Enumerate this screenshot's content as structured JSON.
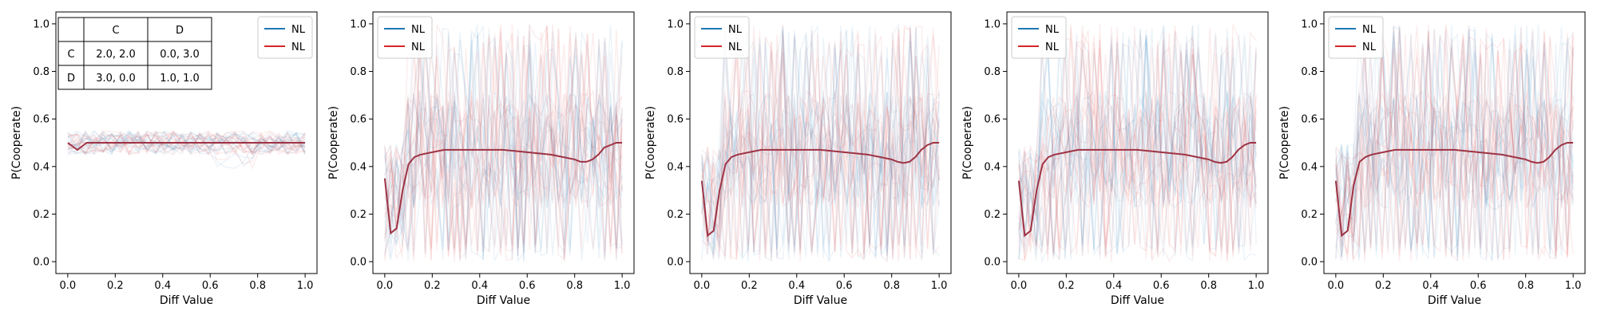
{
  "chart_data": [
    {
      "type": "line",
      "xlabel": "Diff Value",
      "ylabel": "P(Cooperate)",
      "xlim": [
        -0.05,
        1.05
      ],
      "ylim": [
        -0.05,
        1.05
      ],
      "xticks": [
        "0.0",
        "0.2",
        "0.4",
        "0.6",
        "0.8",
        "1.0"
      ],
      "yticks": [
        "0.0",
        "0.2",
        "0.4",
        "0.6",
        "0.8",
        "1.0"
      ],
      "legend_position": "top-right",
      "legend": [
        {
          "label": "NL",
          "color": "#1f77b4"
        },
        {
          "label": "NL",
          "color": "#d62728"
        }
      ],
      "payoff_table": {
        "col_headers": [
          "",
          "C",
          "D"
        ],
        "rows": [
          [
            "C",
            "2.0, 2.0",
            "0.0, 3.0"
          ],
          [
            "D",
            "3.0, 0.0",
            "1.0, 1.0"
          ]
        ]
      },
      "x": [
        0,
        0.04,
        0.08,
        0.12,
        0.16,
        0.2,
        0.3,
        0.4,
        0.5,
        0.6,
        0.7,
        0.8,
        0.9,
        1.0
      ],
      "mean_line": [
        0.5,
        0.47,
        0.5,
        0.5,
        0.5,
        0.5,
        0.5,
        0.5,
        0.5,
        0.5,
        0.5,
        0.5,
        0.5,
        0.5
      ],
      "noise_spread": 0.05,
      "noise_style": "band"
    },
    {
      "type": "line",
      "xlabel": "Diff Value",
      "ylabel": "P(Cooperate)",
      "xlim": [
        -0.05,
        1.05
      ],
      "ylim": [
        -0.05,
        1.05
      ],
      "xticks": [
        "0.0",
        "0.2",
        "0.4",
        "0.6",
        "0.8",
        "1.0"
      ],
      "yticks": [
        "0.0",
        "0.2",
        "0.4",
        "0.6",
        "0.8",
        "1.0"
      ],
      "legend_position": "top-left",
      "legend": [
        {
          "label": "NL",
          "color": "#1f77b4"
        },
        {
          "label": "NL",
          "color": "#d62728"
        }
      ],
      "x": [
        0,
        0.025,
        0.05,
        0.075,
        0.1,
        0.125,
        0.15,
        0.2,
        0.25,
        0.3,
        0.35,
        0.4,
        0.45,
        0.5,
        0.55,
        0.6,
        0.65,
        0.7,
        0.75,
        0.8,
        0.825,
        0.85,
        0.875,
        0.9,
        0.925,
        0.95,
        0.975,
        1.0
      ],
      "mean_line": [
        0.35,
        0.12,
        0.14,
        0.3,
        0.41,
        0.44,
        0.45,
        0.46,
        0.47,
        0.47,
        0.47,
        0.47,
        0.47,
        0.47,
        0.465,
        0.46,
        0.455,
        0.45,
        0.44,
        0.43,
        0.42,
        0.42,
        0.43,
        0.45,
        0.48,
        0.49,
        0.5,
        0.5
      ],
      "noise_spread": 0.45,
      "noise_style": "spiky"
    },
    {
      "type": "line",
      "xlabel": "Diff Value",
      "ylabel": "P(Cooperate)",
      "xlim": [
        -0.05,
        1.05
      ],
      "ylim": [
        -0.05,
        1.05
      ],
      "xticks": [
        "0.0",
        "0.2",
        "0.4",
        "0.6",
        "0.8",
        "1.0"
      ],
      "yticks": [
        "0.0",
        "0.2",
        "0.4",
        "0.6",
        "0.8",
        "1.0"
      ],
      "legend_position": "top-left",
      "legend": [
        {
          "label": "NL",
          "color": "#1f77b4"
        },
        {
          "label": "NL",
          "color": "#d62728"
        }
      ],
      "x": [
        0,
        0.025,
        0.05,
        0.075,
        0.1,
        0.125,
        0.15,
        0.2,
        0.25,
        0.3,
        0.35,
        0.4,
        0.45,
        0.5,
        0.55,
        0.6,
        0.65,
        0.7,
        0.75,
        0.8,
        0.825,
        0.85,
        0.875,
        0.9,
        0.925,
        0.95,
        0.975,
        1.0
      ],
      "mean_line": [
        0.34,
        0.11,
        0.13,
        0.3,
        0.41,
        0.44,
        0.45,
        0.46,
        0.47,
        0.47,
        0.47,
        0.47,
        0.47,
        0.47,
        0.465,
        0.46,
        0.455,
        0.45,
        0.44,
        0.43,
        0.42,
        0.415,
        0.42,
        0.44,
        0.47,
        0.49,
        0.5,
        0.5
      ],
      "noise_spread": 0.45,
      "noise_style": "spiky"
    },
    {
      "type": "line",
      "xlabel": "Diff Value",
      "ylabel": "P(Cooperate)",
      "xlim": [
        -0.05,
        1.05
      ],
      "ylim": [
        -0.05,
        1.05
      ],
      "xticks": [
        "0.0",
        "0.2",
        "0.4",
        "0.6",
        "0.8",
        "1.0"
      ],
      "yticks": [
        "0.0",
        "0.2",
        "0.4",
        "0.6",
        "0.8",
        "1.0"
      ],
      "legend_position": "top-left",
      "legend": [
        {
          "label": "NL",
          "color": "#1f77b4"
        },
        {
          "label": "NL",
          "color": "#d62728"
        }
      ],
      "x": [
        0,
        0.025,
        0.05,
        0.075,
        0.1,
        0.125,
        0.15,
        0.2,
        0.25,
        0.3,
        0.35,
        0.4,
        0.45,
        0.5,
        0.55,
        0.6,
        0.65,
        0.7,
        0.75,
        0.8,
        0.825,
        0.85,
        0.875,
        0.9,
        0.925,
        0.95,
        0.975,
        1.0
      ],
      "mean_line": [
        0.34,
        0.11,
        0.13,
        0.3,
        0.41,
        0.44,
        0.45,
        0.46,
        0.47,
        0.47,
        0.47,
        0.47,
        0.47,
        0.47,
        0.465,
        0.46,
        0.455,
        0.45,
        0.44,
        0.43,
        0.42,
        0.415,
        0.42,
        0.44,
        0.47,
        0.49,
        0.5,
        0.5
      ],
      "noise_spread": 0.45,
      "noise_style": "spiky"
    },
    {
      "type": "line",
      "xlabel": "Diff Value",
      "ylabel": "P(Cooperate)",
      "xlim": [
        -0.05,
        1.05
      ],
      "ylim": [
        -0.05,
        1.05
      ],
      "xticks": [
        "0.0",
        "0.2",
        "0.4",
        "0.6",
        "0.8",
        "1.0"
      ],
      "yticks": [
        "0.0",
        "0.2",
        "0.4",
        "0.6",
        "0.8",
        "1.0"
      ],
      "legend_position": "top-left",
      "legend": [
        {
          "label": "NL",
          "color": "#1f77b4"
        },
        {
          "label": "NL",
          "color": "#d62728"
        }
      ],
      "x": [
        0,
        0.025,
        0.05,
        0.075,
        0.1,
        0.125,
        0.15,
        0.2,
        0.25,
        0.3,
        0.35,
        0.4,
        0.45,
        0.5,
        0.55,
        0.6,
        0.65,
        0.7,
        0.75,
        0.8,
        0.825,
        0.85,
        0.875,
        0.9,
        0.925,
        0.95,
        0.975,
        1.0
      ],
      "mean_line": [
        0.34,
        0.11,
        0.13,
        0.32,
        0.42,
        0.44,
        0.45,
        0.46,
        0.47,
        0.47,
        0.47,
        0.47,
        0.47,
        0.47,
        0.465,
        0.46,
        0.455,
        0.45,
        0.44,
        0.43,
        0.42,
        0.415,
        0.42,
        0.44,
        0.47,
        0.49,
        0.5,
        0.5
      ],
      "noise_spread": 0.45,
      "noise_style": "spiky"
    }
  ],
  "colors": {
    "blue_series": "#1f77b4",
    "red_series": "#d62728",
    "mean_line": "#9e3344"
  }
}
